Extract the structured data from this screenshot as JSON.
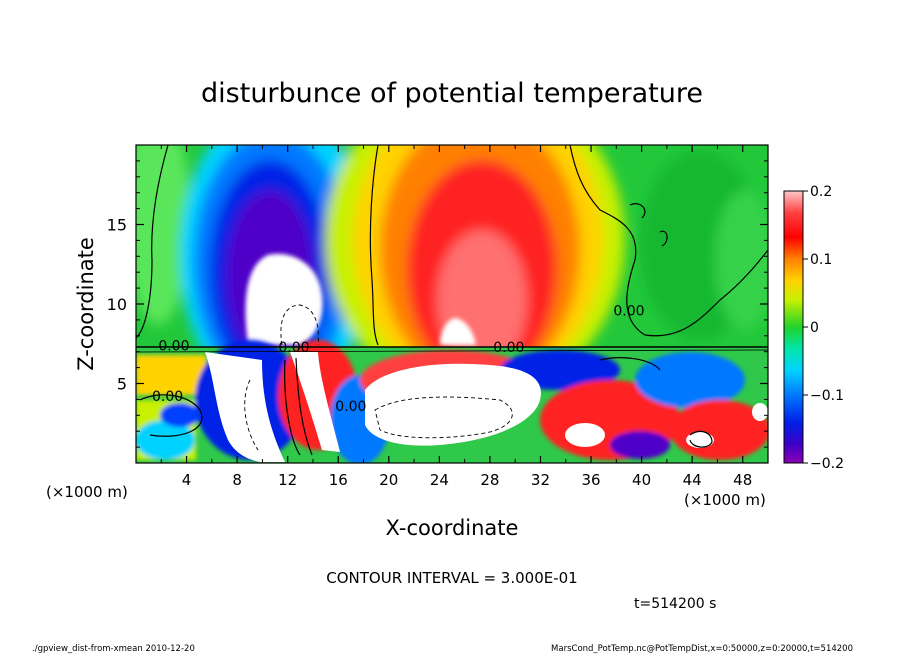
{
  "chart_data": {
    "type": "heatmap",
    "title": "disturbunce of potential temperature",
    "xlabel": "X-coordinate",
    "ylabel": "Z-coordinate",
    "x_unit": "(×1000 m)",
    "y_unit": "(×1000 m)",
    "xlim": [
      0,
      50
    ],
    "ylim": [
      0,
      20
    ],
    "x_ticks": [
      4,
      8,
      12,
      16,
      20,
      24,
      28,
      32,
      36,
      40,
      44,
      48
    ],
    "y_ticks": [
      5,
      10,
      15
    ],
    "colorbar": {
      "range": [
        -0.2,
        0.2
      ],
      "tick_values": [
        0.2,
        0.1,
        0,
        -0.1,
        -0.2
      ],
      "tick_labels": [
        "0.2",
        "0.1",
        "0",
        "−0.1",
        "−0.2"
      ]
    },
    "contour_labels": [
      {
        "text": "0.00",
        "x": 3.0,
        "z": 7.4
      },
      {
        "text": "0.00",
        "x": 12.5,
        "z": 7.3
      },
      {
        "text": "0.00",
        "x": 29.5,
        "z": 7.3
      },
      {
        "text": "0.00",
        "x": 39.0,
        "z": 9.6
      },
      {
        "text": "0.00",
        "x": 2.5,
        "z": 4.2
      },
      {
        "text": "0.00",
        "x": 17.0,
        "z": 3.6
      }
    ],
    "annotations": {
      "contour_interval": "CONTOUR INTERVAL = 3.000E-01",
      "time": "t=514200 s",
      "footer_left": "./gpview_dist-from-xmean  2010-12-20",
      "footer_right": "MarsCond_PotTemp.nc@PotTempDist,x=0:50000,z=0:20000,t=514200"
    }
  }
}
